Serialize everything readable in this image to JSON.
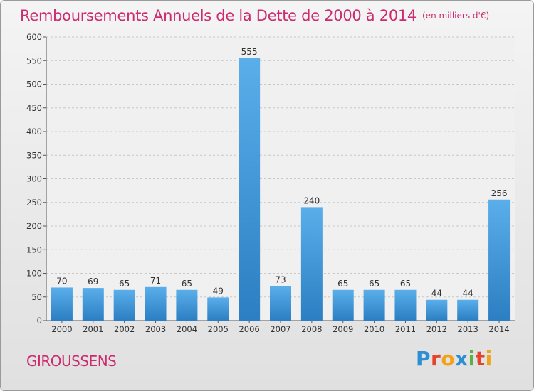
{
  "title": "Remboursements Annuels de la Dette de 2000 à 2014",
  "subtitle": "(en milliers d'€)",
  "place_name": "GIROUSSENS",
  "logo": {
    "text": "Proxiti",
    "letters": [
      {
        "ch": "P",
        "color": "#2c8fd4"
      },
      {
        "ch": "r",
        "color": "#e4432d"
      },
      {
        "ch": "o",
        "color": "#f3a31b"
      },
      {
        "ch": "x",
        "color": "#2c8fd4"
      },
      {
        "ch": "i",
        "color": "#5bb144"
      },
      {
        "ch": "t",
        "color": "#e4432d"
      },
      {
        "ch": "i",
        "color": "#f3a31b"
      }
    ]
  },
  "colors": {
    "title": "#cc2b70",
    "bar_light": "#5aaeea",
    "bar_dark": "#2b7fc2",
    "grid": "#c8c8c8"
  },
  "chart_data": {
    "type": "bar",
    "categories": [
      "2000",
      "2001",
      "2002",
      "2003",
      "2004",
      "2005",
      "2006",
      "2007",
      "2008",
      "2009",
      "2010",
      "2011",
      "2012",
      "2013",
      "2014"
    ],
    "values": [
      70,
      69,
      65,
      71,
      65,
      49,
      555,
      73,
      240,
      65,
      65,
      65,
      44,
      44,
      256
    ],
    "title": "Remboursements Annuels de la Dette de 2000 à 2014",
    "subtitle": "(en milliers d'€)",
    "xlabel": "",
    "ylabel": "",
    "ylim": [
      0,
      600
    ],
    "yticks": [
      0,
      50,
      100,
      150,
      200,
      250,
      300,
      350,
      400,
      450,
      500,
      550,
      600
    ],
    "grid": "horizontal dashed",
    "legend": "none"
  }
}
